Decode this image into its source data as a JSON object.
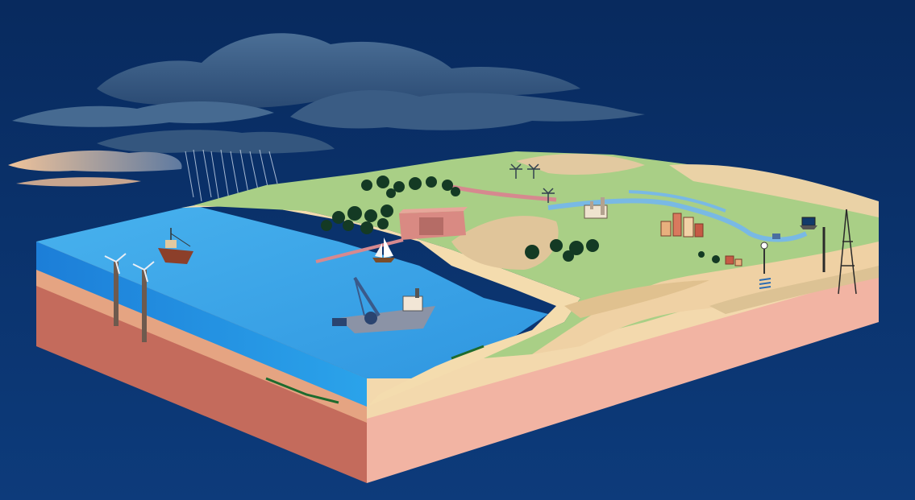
{
  "scene": {
    "palette": {
      "sky_top": "#0a2a5e",
      "sky_bottom": "#0c3a78",
      "cloud": "#3d5f86",
      "cloud_dark": "#2c4a72",
      "cloud_glow": "#e9b48a",
      "sea_top": "#3aa6ea",
      "sea_front": "#1f7fd6",
      "sand": "#f3d9ad",
      "land_green": "#a9cf86",
      "land_hills": "#e2c9a0",
      "soil_layer": "#e9a78e",
      "soil_deep": "#f2b5a3",
      "river": "#79b9e4",
      "trees": "#143a24"
    },
    "icons": [
      "rain-cloud-icon",
      "wind-turbine-icon",
      "boat-icon",
      "dredger-icon",
      "sailboat-icon",
      "windmill-icon",
      "factory-icon",
      "town-icon",
      "tree-icon",
      "dam-icon",
      "monitoring-station-icon",
      "pole-icon",
      "antenna-tower-icon",
      "laptop-icon"
    ]
  }
}
